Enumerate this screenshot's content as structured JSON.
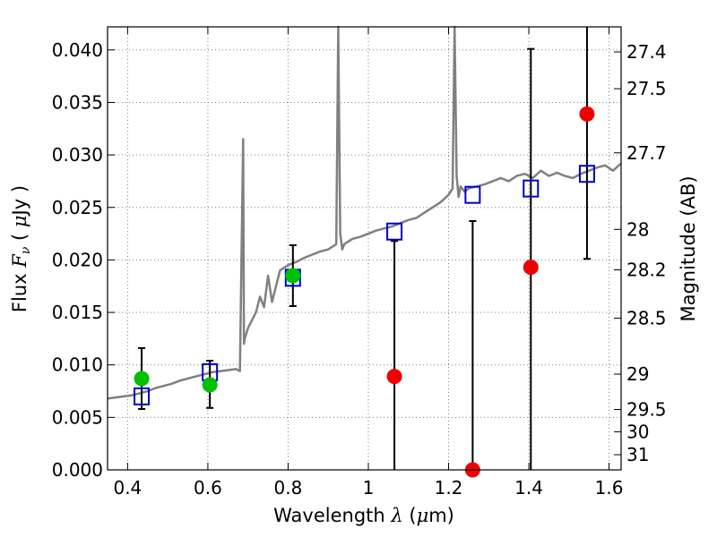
{
  "chart_data": {
    "type": "scatter",
    "title": "",
    "xlabel": "Wavelength  λ (μm)",
    "ylabel": "Flux  Fν  ( μJy )",
    "y2label": "Magnitude (AB)",
    "xlim": [
      0.35,
      1.63
    ],
    "ylim": [
      0.0,
      0.0422
    ],
    "grid": true,
    "x_ticks": [
      0.4,
      0.6,
      0.8,
      1.0,
      1.2,
      1.4,
      1.6
    ],
    "x_tick_labels": [
      "0.4",
      "0.6",
      "0.8",
      "1",
      "1.2",
      "1.4",
      "1.6"
    ],
    "y_ticks": [
      0.0,
      0.005,
      0.01,
      0.015,
      0.02,
      0.025,
      0.03,
      0.035,
      0.04
    ],
    "y_tick_labels": [
      "0.000",
      "0.005",
      "0.010",
      "0.015",
      "0.020",
      "0.025",
      "0.030",
      "0.035",
      "0.040"
    ],
    "mag_ticks": [
      27.4,
      27.5,
      27.7,
      28,
      28.2,
      28.5,
      29,
      29.5,
      30,
      31
    ],
    "mag_tick_labels": [
      "27.4",
      "27.5",
      "27.7",
      "28",
      "28.2",
      "28.5",
      "29",
      "29.5",
      "30",
      "31"
    ],
    "colors": {
      "spectrum": "#808080",
      "model_marker": "#0000cc",
      "green": "#00c000",
      "red": "#ee0000",
      "errorbar": "#000000",
      "grid": "#7f7f7f"
    },
    "spectrum": {
      "x": [
        0.35,
        0.37,
        0.39,
        0.41,
        0.43,
        0.45,
        0.47,
        0.49,
        0.51,
        0.53,
        0.55,
        0.57,
        0.59,
        0.61,
        0.63,
        0.65,
        0.67,
        0.68,
        0.688,
        0.69,
        0.692,
        0.7,
        0.72,
        0.73,
        0.74,
        0.75,
        0.76,
        0.77,
        0.78,
        0.8,
        0.82,
        0.84,
        0.86,
        0.88,
        0.9,
        0.92,
        0.925,
        0.93,
        0.935,
        0.94,
        0.96,
        0.98,
        1.0,
        1.02,
        1.04,
        1.06,
        1.08,
        1.1,
        1.12,
        1.14,
        1.16,
        1.18,
        1.2,
        1.21,
        1.215,
        1.22,
        1.225,
        1.23,
        1.24,
        1.25,
        1.27,
        1.29,
        1.31,
        1.33,
        1.35,
        1.37,
        1.39,
        1.41,
        1.43,
        1.45,
        1.47,
        1.49,
        1.51,
        1.53,
        1.55,
        1.57,
        1.59,
        1.61,
        1.63
      ],
      "y": [
        0.0068,
        0.0069,
        0.007,
        0.0071,
        0.0073,
        0.0075,
        0.0078,
        0.008,
        0.0082,
        0.0085,
        0.0087,
        0.0089,
        0.0091,
        0.0093,
        0.0094,
        0.0095,
        0.0096,
        0.0094,
        0.0315,
        0.012,
        0.0125,
        0.0135,
        0.015,
        0.0165,
        0.0155,
        0.0185,
        0.016,
        0.0175,
        0.019,
        0.0195,
        0.0198,
        0.0202,
        0.0205,
        0.0208,
        0.021,
        0.0215,
        0.0422,
        0.0225,
        0.021,
        0.0215,
        0.022,
        0.0222,
        0.0225,
        0.0228,
        0.023,
        0.0232,
        0.0235,
        0.0238,
        0.024,
        0.0245,
        0.025,
        0.0255,
        0.0262,
        0.0268,
        0.0422,
        0.028,
        0.026,
        0.027,
        0.0265,
        0.0268,
        0.027,
        0.0272,
        0.0275,
        0.0278,
        0.0275,
        0.028,
        0.0282,
        0.0278,
        0.0285,
        0.028,
        0.0283,
        0.028,
        0.0278,
        0.0282,
        0.0285,
        0.0288,
        0.029,
        0.0285,
        0.0292
      ]
    },
    "model_points": {
      "x": [
        0.435,
        0.605,
        0.812,
        1.065,
        1.26,
        1.405,
        1.545
      ],
      "y": [
        0.007,
        0.0093,
        0.0183,
        0.0227,
        0.0262,
        0.0268,
        0.0282
      ]
    },
    "green_points": {
      "x": [
        0.435,
        0.605,
        0.812
      ],
      "y": [
        0.0087,
        0.0081,
        0.0185
      ],
      "err_low": [
        0.0058,
        0.0059,
        0.0156
      ],
      "err_high": [
        0.0116,
        0.0104,
        0.0214
      ]
    },
    "red_points": {
      "x": [
        1.065,
        1.26,
        1.405,
        1.545
      ],
      "y": [
        0.0089,
        0.0,
        0.0193,
        0.0339
      ],
      "err_low": [
        0.0,
        0.0,
        0.0,
        0.0201
      ],
      "err_high": [
        0.0218,
        0.0237,
        0.0401,
        0.0422
      ]
    }
  }
}
